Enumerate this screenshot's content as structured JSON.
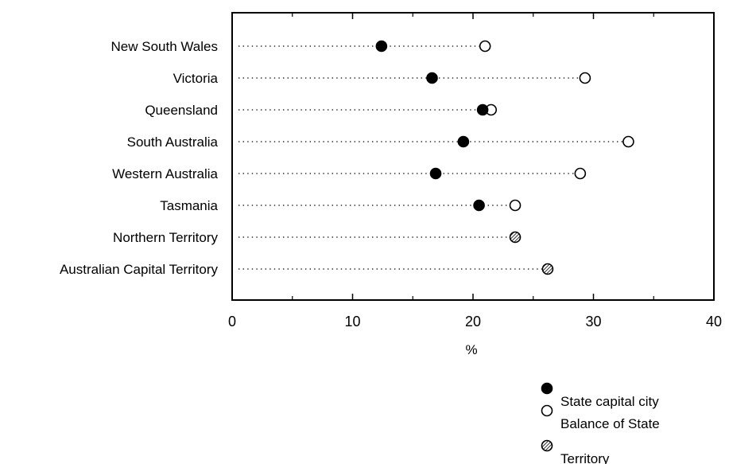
{
  "chart_data": {
    "type": "scatter",
    "categories": [
      "New South Wales",
      "Victoria",
      "Queensland",
      "South Australia",
      "Western Australia",
      "Tasmania",
      "Northern Territory",
      "Australian Capital Territory"
    ],
    "series": [
      {
        "name": "State capital city",
        "marker": "filled",
        "values": [
          12.4,
          16.6,
          20.8,
          19.2,
          16.9,
          20.5,
          null,
          null
        ]
      },
      {
        "name": "Balance of State",
        "marker": "hollow",
        "values": [
          21.0,
          29.3,
          21.5,
          32.9,
          28.9,
          23.5,
          null,
          null
        ]
      },
      {
        "name": "Territory",
        "marker": "hatched",
        "values": [
          null,
          null,
          null,
          null,
          null,
          null,
          23.5,
          26.2
        ]
      }
    ],
    "xlabel": "%",
    "xlim": [
      0,
      40
    ],
    "xticks": [
      "0",
      "10",
      "20",
      "30",
      "40"
    ],
    "legend_position": "bottom-right",
    "grid": false
  }
}
